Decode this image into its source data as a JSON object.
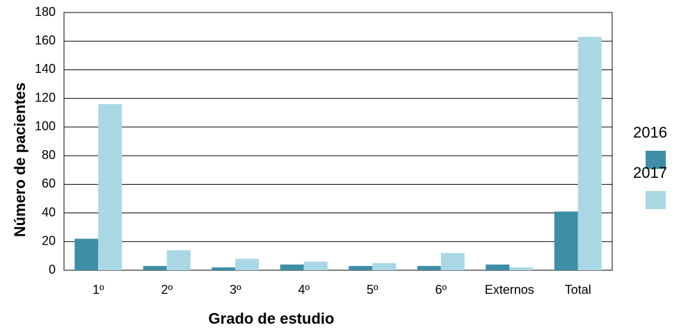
{
  "chart_data": {
    "type": "bar",
    "x_label": "Grado de estudio",
    "y_label": "Número de pacientes",
    "categories": [
      "1º",
      "2º",
      "3º",
      "4º",
      "5º",
      "6º",
      "Externos",
      "Total"
    ],
    "series": [
      {
        "name": "2016",
        "color": "#3d8ea6",
        "values": [
          22,
          3,
          2,
          4,
          3,
          3,
          4,
          41
        ]
      },
      {
        "name": "2017",
        "color": "#a9d8e4",
        "values": [
          116,
          14,
          8,
          6,
          5,
          12,
          2,
          163
        ]
      }
    ],
    "ylim": [
      0,
      180
    ],
    "yticks": [
      0,
      20,
      40,
      60,
      80,
      100,
      120,
      140,
      160,
      180
    ],
    "grid": true,
    "legend": "right"
  }
}
